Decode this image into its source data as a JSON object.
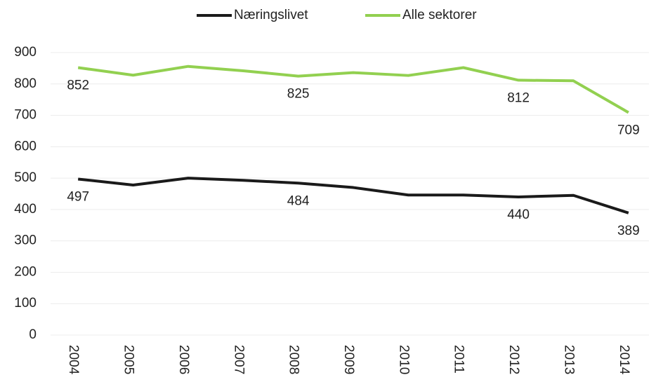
{
  "chart_data": {
    "type": "line",
    "categories": [
      "2004",
      "2005",
      "2006",
      "2007",
      "2008",
      "2009",
      "2010",
      "2011",
      "2012",
      "2013",
      "2014"
    ],
    "series": [
      {
        "name": "Næringslivet",
        "color": "#1a1a1a",
        "values": [
          497,
          478,
          500,
          493,
          484,
          470,
          446,
          446,
          440,
          445,
          389
        ],
        "value_labels": [
          "497",
          null,
          null,
          null,
          "484",
          null,
          null,
          null,
          "440",
          null,
          "389"
        ]
      },
      {
        "name": "Alle sektorer",
        "color": "#92d050",
        "values": [
          852,
          828,
          856,
          842,
          825,
          836,
          827,
          852,
          812,
          810,
          709
        ],
        "value_labels": [
          "852",
          null,
          null,
          null,
          "825",
          null,
          null,
          null,
          "812",
          null,
          "709"
        ]
      }
    ],
    "ylim": [
      0,
      900
    ],
    "yticks": [
      0,
      100,
      200,
      300,
      400,
      500,
      600,
      700,
      800,
      900
    ],
    "grid": true,
    "legend": "top"
  }
}
